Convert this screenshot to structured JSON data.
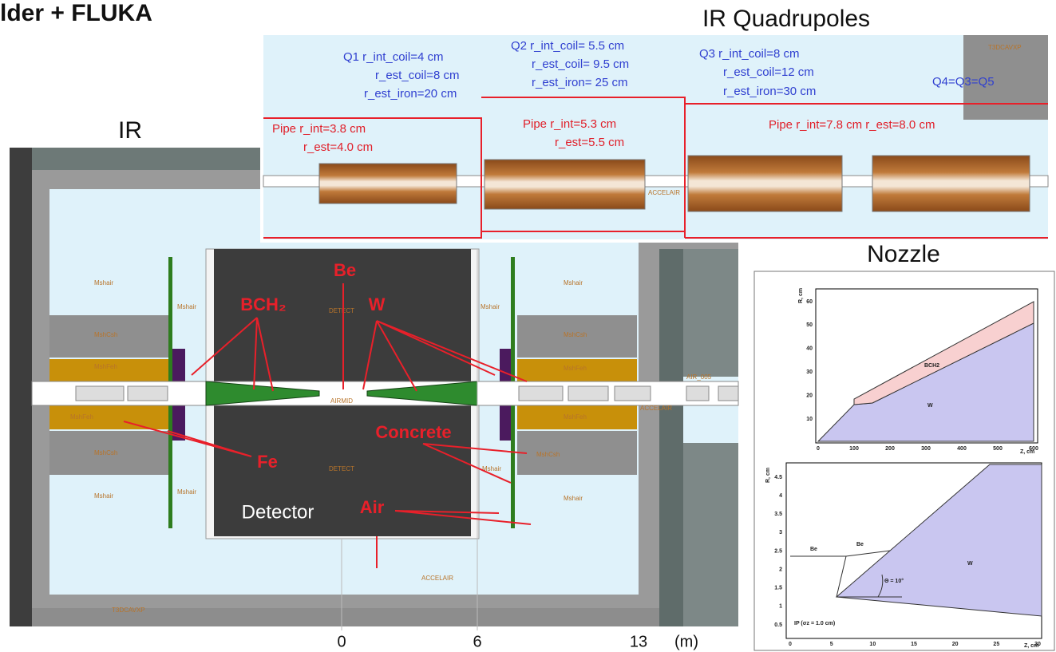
{
  "header": {
    "title": "lder + FLUKA"
  },
  "ir_quadrupoles": {
    "title": "IR Quadrupoles",
    "q1": [
      "Q1 r_int_coil=4 cm",
      "r_est_coil=8 cm",
      "r_est_iron=20 cm"
    ],
    "q2": [
      "Q2 r_int_coil= 5.5 cm",
      "r_est_coil= 9.5 cm",
      "r_est_iron= 25 cm"
    ],
    "q3": [
      "Q3 r_int_coil=8 cm",
      "r_est_coil=12 cm",
      "r_est_iron=30 cm"
    ],
    "q4": "Q4=Q3=Q5",
    "pipe1": [
      "Pipe r_int=3.8 cm",
      "r_est=4.0 cm"
    ],
    "pipe2": [
      "Pipe r_int=5.3 cm",
      "r_est=5.5 cm"
    ],
    "pipe3": "Pipe r_int=7.8 cm r_est=8.0 cm",
    "small_labels": [
      "ACCELAIR",
      "T3DCAVXP"
    ]
  },
  "ir": {
    "title": "IR",
    "materials": {
      "bch2": "BCH₂",
      "be": "Be",
      "w": "W",
      "fe": "Fe",
      "concrete": "Concrete",
      "air": "Air"
    },
    "detector": "Detector",
    "region_labels": [
      "Mshair",
      "MshCsh",
      "MshFeh",
      "DETECT",
      "AIRMID",
      "ACCELAIR",
      "T3DCAVXP",
      "AIR_005"
    ],
    "axis": {
      "ticks": [
        "0",
        "6",
        "13"
      ],
      "unit": "(m)"
    }
  },
  "nozzle": {
    "title": "Nozzle",
    "upper": {
      "y_label": "R, cm",
      "x_label": "Z, cm",
      "xticks": [
        "0",
        "100",
        "200",
        "300",
        "400",
        "500",
        "600"
      ],
      "yticks": [
        "10",
        "20",
        "30",
        "40",
        "50",
        "60"
      ],
      "labels": [
        "BCH2",
        "W"
      ]
    },
    "lower": {
      "y_label": "R, cm",
      "x_label": "Z, cm",
      "xticks": [
        "0",
        "5",
        "10",
        "15",
        "20",
        "25",
        "30"
      ],
      "yticks": [
        "0.5",
        "1",
        "1.5",
        "2",
        "2.5",
        "3",
        "3.5",
        "4",
        "4.5"
      ],
      "labels": [
        "Be",
        "Be",
        "Θ = 10°",
        "W",
        "IP (σz = 1.0 cm)"
      ]
    }
  }
}
